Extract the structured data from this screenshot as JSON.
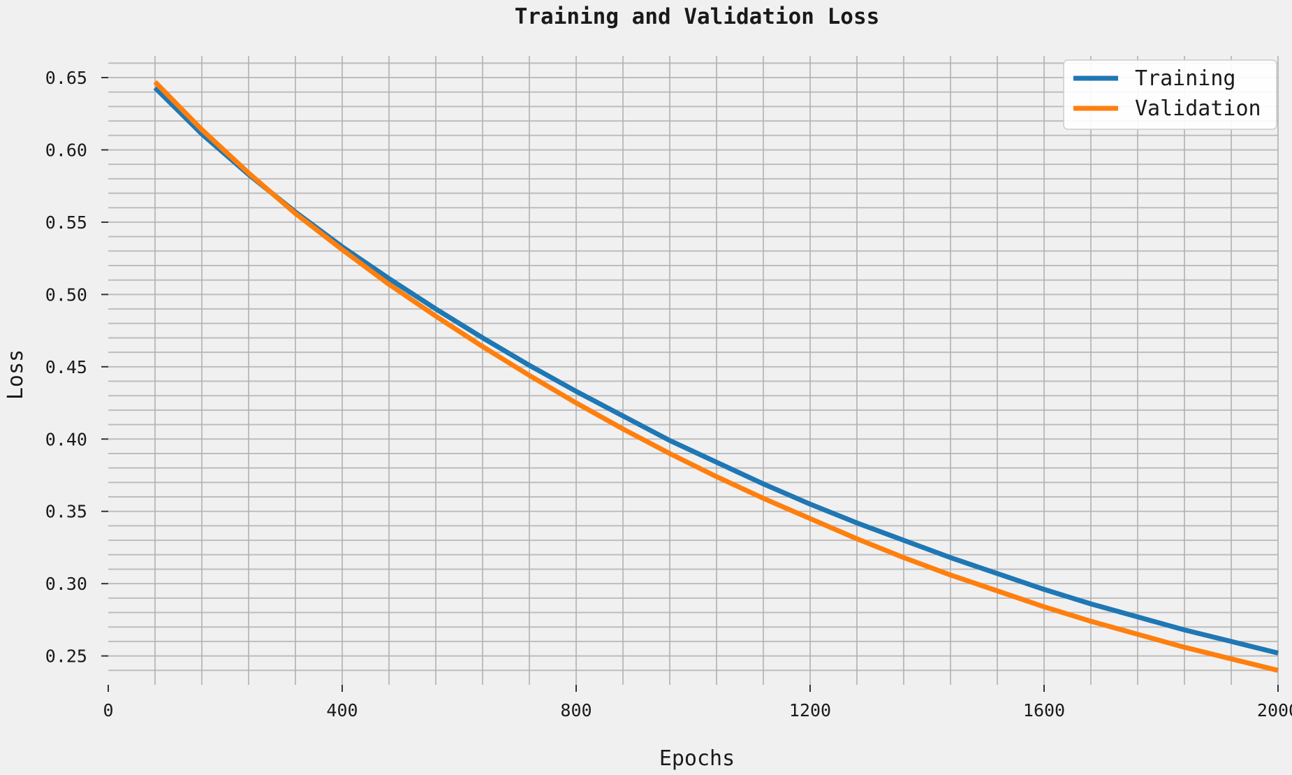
{
  "chart_data": {
    "type": "line",
    "title": "Training and Validation Loss",
    "xlabel": "Epochs",
    "ylabel": "Loss",
    "xlim": [
      0,
      2000
    ],
    "ylim": [
      0.23,
      0.665
    ],
    "xticks": [
      0,
      400,
      800,
      1200,
      1600,
      2000
    ],
    "xtick_labels": [
      "0",
      "400",
      "800",
      "1200",
      "1600",
      "2000"
    ],
    "yticks": [
      0.25,
      0.3,
      0.35,
      0.4,
      0.45,
      0.5,
      0.55,
      0.6,
      0.65
    ],
    "ytick_labels": [
      "0.25",
      "0.30",
      "0.35",
      "0.40",
      "0.45",
      "0.50",
      "0.55",
      "0.60",
      "0.65"
    ],
    "grid": true,
    "legend_position": "top-right",
    "series": [
      {
        "name": "Training",
        "color": "#1f77b4",
        "x": [
          80,
          160,
          240,
          320,
          400,
          480,
          560,
          640,
          720,
          800,
          880,
          960,
          1040,
          1120,
          1200,
          1280,
          1360,
          1440,
          1520,
          1600,
          1680,
          1760,
          1840,
          1920,
          2000
        ],
        "y": [
          0.643,
          0.611,
          0.583,
          0.557,
          0.533,
          0.511,
          0.49,
          0.47,
          0.451,
          0.433,
          0.416,
          0.399,
          0.384,
          0.369,
          0.355,
          0.342,
          0.33,
          0.318,
          0.307,
          0.296,
          0.286,
          0.277,
          0.268,
          0.26,
          0.252
        ]
      },
      {
        "name": "Validation",
        "color": "#ff7f0e",
        "x": [
          80,
          160,
          240,
          320,
          400,
          480,
          560,
          640,
          720,
          800,
          880,
          960,
          1040,
          1120,
          1200,
          1280,
          1360,
          1440,
          1520,
          1600,
          1680,
          1760,
          1840,
          1920,
          2000
        ],
        "y": [
          0.647,
          0.614,
          0.584,
          0.556,
          0.531,
          0.507,
          0.485,
          0.464,
          0.444,
          0.425,
          0.407,
          0.39,
          0.374,
          0.359,
          0.345,
          0.331,
          0.318,
          0.306,
          0.295,
          0.284,
          0.274,
          0.265,
          0.256,
          0.248,
          0.24
        ]
      }
    ]
  }
}
